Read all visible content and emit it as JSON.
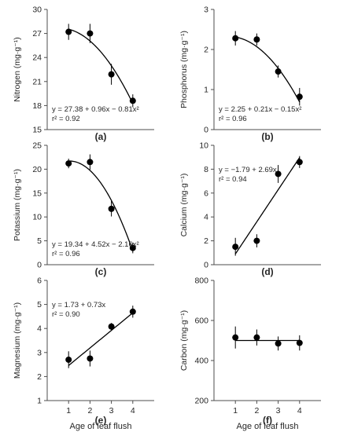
{
  "xaxis_title": "Age of leaf flush",
  "chart_data": [
    {
      "type": "scatter",
      "panel_label": "(a)",
      "ylabel": "Nitrogen (mg·g⁻¹)",
      "x": [
        1,
        2,
        3,
        4
      ],
      "y": [
        27.2,
        27.0,
        21.9,
        18.6
      ],
      "error": [
        1.0,
        1.2,
        1.3,
        0.8
      ],
      "xlim": [
        0,
        5
      ],
      "ylim": [
        15,
        30
      ],
      "xticks": [],
      "yticks": [
        15,
        18,
        21,
        24,
        27,
        30
      ],
      "fit": {
        "kind": "poly",
        "coef": [
          27.38,
          0.96,
          -0.81
        ]
      },
      "equation": [
        "y = 27.38 + 0.96x − 0.81x²",
        "r² = 0.92"
      ],
      "equation_position": "bottom-left",
      "xlabel": ""
    },
    {
      "type": "scatter",
      "panel_label": "(b)",
      "ylabel": "Phosphorus (mg·g⁻¹)",
      "x": [
        1,
        2,
        3,
        4
      ],
      "y": [
        2.28,
        2.25,
        1.45,
        0.82
      ],
      "error": [
        0.18,
        0.15,
        0.15,
        0.22
      ],
      "xlim": [
        0,
        5
      ],
      "ylim": [
        0,
        3
      ],
      "xticks": [],
      "yticks": [
        0,
        1,
        2,
        3
      ],
      "fit": {
        "kind": "poly",
        "coef": [
          2.25,
          0.21,
          -0.15
        ]
      },
      "equation": [
        "y = 2.25 + 0.21x − 0.15x²",
        "r² = 0.96"
      ],
      "equation_position": "bottom-left",
      "xlabel": ""
    },
    {
      "type": "scatter",
      "panel_label": "(c)",
      "ylabel": "Potassium (mg·g⁻¹)",
      "x": [
        1,
        2,
        3,
        4
      ],
      "y": [
        21.2,
        21.5,
        11.7,
        3.5
      ],
      "error": [
        1.0,
        1.6,
        1.6,
        1.1
      ],
      "xlim": [
        0,
        5
      ],
      "ylim": [
        0,
        25
      ],
      "xticks": [],
      "yticks": [
        0,
        5,
        10,
        15,
        20,
        25
      ],
      "fit": {
        "kind": "poly",
        "coef": [
          19.34,
          4.52,
          -2.16
        ]
      },
      "equation": [
        "y = 19.34 + 4.52x − 2.16x²",
        "r² = 0.96"
      ],
      "equation_position": "bottom-left",
      "xlabel": ""
    },
    {
      "type": "scatter",
      "panel_label": "(d)",
      "ylabel": "Calcium (mg·g⁻¹)",
      "x": [
        1,
        2,
        3,
        4
      ],
      "y": [
        1.5,
        2.0,
        7.6,
        8.6
      ],
      "error": [
        0.75,
        0.55,
        0.75,
        0.5
      ],
      "xlim": [
        0,
        5
      ],
      "ylim": [
        0,
        10
      ],
      "xticks": [],
      "yticks": [
        0,
        2,
        4,
        6,
        8,
        10
      ],
      "fit": {
        "kind": "poly",
        "coef": [
          -1.79,
          2.69
        ]
      },
      "equation": [
        "y = −1.79 + 2.69x",
        "r² = 0.94"
      ],
      "equation_position": "top-left",
      "xlabel": ""
    },
    {
      "type": "scatter",
      "panel_label": "(e)",
      "ylabel": "Magnesium (mg·g⁻¹)",
      "x": [
        1,
        2,
        3,
        4
      ],
      "y": [
        2.7,
        2.75,
        4.08,
        4.7
      ],
      "error": [
        0.35,
        0.33,
        0.15,
        0.25
      ],
      "xlim": [
        0,
        5
      ],
      "ylim": [
        1,
        6
      ],
      "xticks": [
        1,
        2,
        3,
        4
      ],
      "yticks": [
        1,
        2,
        3,
        4,
        5,
        6
      ],
      "fit": {
        "kind": "poly",
        "coef": [
          1.73,
          0.73
        ]
      },
      "equation": [
        "y = 1.73 + 0.73x",
        "r² = 0.90"
      ],
      "equation_position": "top-left",
      "xlabel": "Age of leaf flush"
    },
    {
      "type": "scatter",
      "panel_label": "(f)",
      "ylabel": "Carbon (mg·g⁻¹)",
      "x": [
        1,
        2,
        3,
        4
      ],
      "y": [
        515,
        515,
        485,
        488
      ],
      "error": [
        55,
        40,
        35,
        38
      ],
      "xlim": [
        0,
        5
      ],
      "ylim": [
        200,
        800
      ],
      "xticks": [
        1,
        2,
        3,
        4
      ],
      "yticks": [
        200,
        400,
        600,
        800
      ],
      "fit": {
        "kind": "poly",
        "coef": [
          500
        ]
      },
      "equation": [],
      "equation_position": "",
      "xlabel": "Age of leaf flush"
    }
  ]
}
